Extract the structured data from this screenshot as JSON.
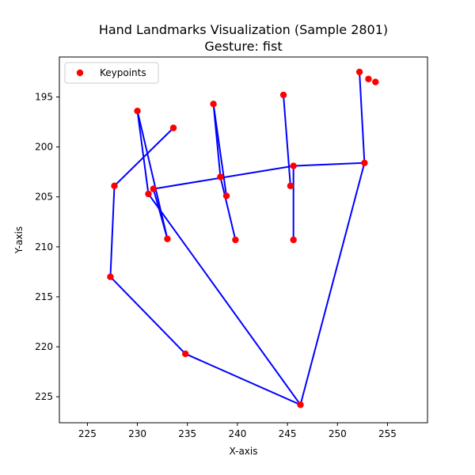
{
  "chart_data": {
    "type": "scatter",
    "title": "Hand Landmarks Visualization (Sample 2801)",
    "subtitle": "Gesture: fist",
    "xlabel": "X-axis",
    "ylabel": "Y-axis",
    "xlim": [
      222.2,
      259.0
    ],
    "ylim": [
      227.6,
      191.0
    ],
    "y_inverted": true,
    "xticks": [
      225,
      230,
      235,
      240,
      245,
      250,
      255
    ],
    "yticks": [
      195,
      200,
      205,
      210,
      215,
      220,
      225
    ],
    "legend": {
      "label": "Keypoints",
      "placement": "top-left"
    },
    "marker_color": "#ff0000",
    "line_color": "#0000ff",
    "grid": false,
    "keypoints": [
      {
        "x": 246.3,
        "y": 225.8
      },
      {
        "x": 234.8,
        "y": 220.7
      },
      {
        "x": 227.3,
        "y": 213.0
      },
      {
        "x": 227.7,
        "y": 203.9
      },
      {
        "x": 233.6,
        "y": 198.1
      },
      {
        "x": 252.7,
        "y": 201.6
      },
      {
        "x": 245.6,
        "y": 201.9
      },
      {
        "x": 245.6,
        "y": 209.3
      },
      {
        "x": 245.3,
        "y": 203.9
      },
      {
        "x": 244.6,
        "y": 194.8
      },
      {
        "x": 238.3,
        "y": 203.0
      },
      {
        "x": 239.8,
        "y": 209.3
      },
      {
        "x": 238.9,
        "y": 204.9
      },
      {
        "x": 237.6,
        "y": 195.7
      },
      {
        "x": 231.6,
        "y": 204.2
      },
      {
        "x": 233.0,
        "y": 209.2
      },
      {
        "x": 231.1,
        "y": 204.7
      },
      {
        "x": 230.0,
        "y": 196.4
      },
      {
        "x": 252.2,
        "y": 192.5
      },
      {
        "x": 253.1,
        "y": 193.2
      },
      {
        "x": 253.8,
        "y": 193.5
      }
    ],
    "connections": [
      [
        0,
        1
      ],
      [
        1,
        2
      ],
      [
        2,
        3
      ],
      [
        3,
        4
      ],
      [
        0,
        5
      ],
      [
        5,
        18
      ],
      [
        5,
        6
      ],
      [
        6,
        14
      ],
      [
        6,
        7
      ],
      [
        8,
        9
      ],
      [
        10,
        11
      ],
      [
        12,
        13
      ],
      [
        10,
        13
      ],
      [
        14,
        15
      ],
      [
        16,
        17
      ],
      [
        15,
        17
      ],
      [
        0,
        16
      ]
    ]
  }
}
